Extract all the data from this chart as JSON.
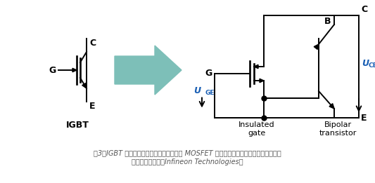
{
  "bg_color": "#ffffff",
  "arrow_color": "#7dbfb8",
  "line_color": "#000000",
  "igbt_label": "IGBT",
  "label_G": "G",
  "label_C": "C",
  "label_E": "E",
  "label_B": "B",
  "label_UGE": "U",
  "label_UGE_sub": "GE",
  "label_UCE": "U",
  "label_UCE_sub": "CE",
  "label_ins_gate": "Insulated\ngate",
  "label_bipolar": "Bipolar\ntransistor",
  "caption_line1": "图3：IGBT 的概念结构展示了构成绝缘栅的 MOSFET 和作为功率处理部分的双极晶体管结",
  "caption_line2": "构。（图片来源：Infineon Technologies）",
  "caption_color": "#555555",
  "figsize": [
    5.33,
    2.61
  ],
  "dpi": 100
}
